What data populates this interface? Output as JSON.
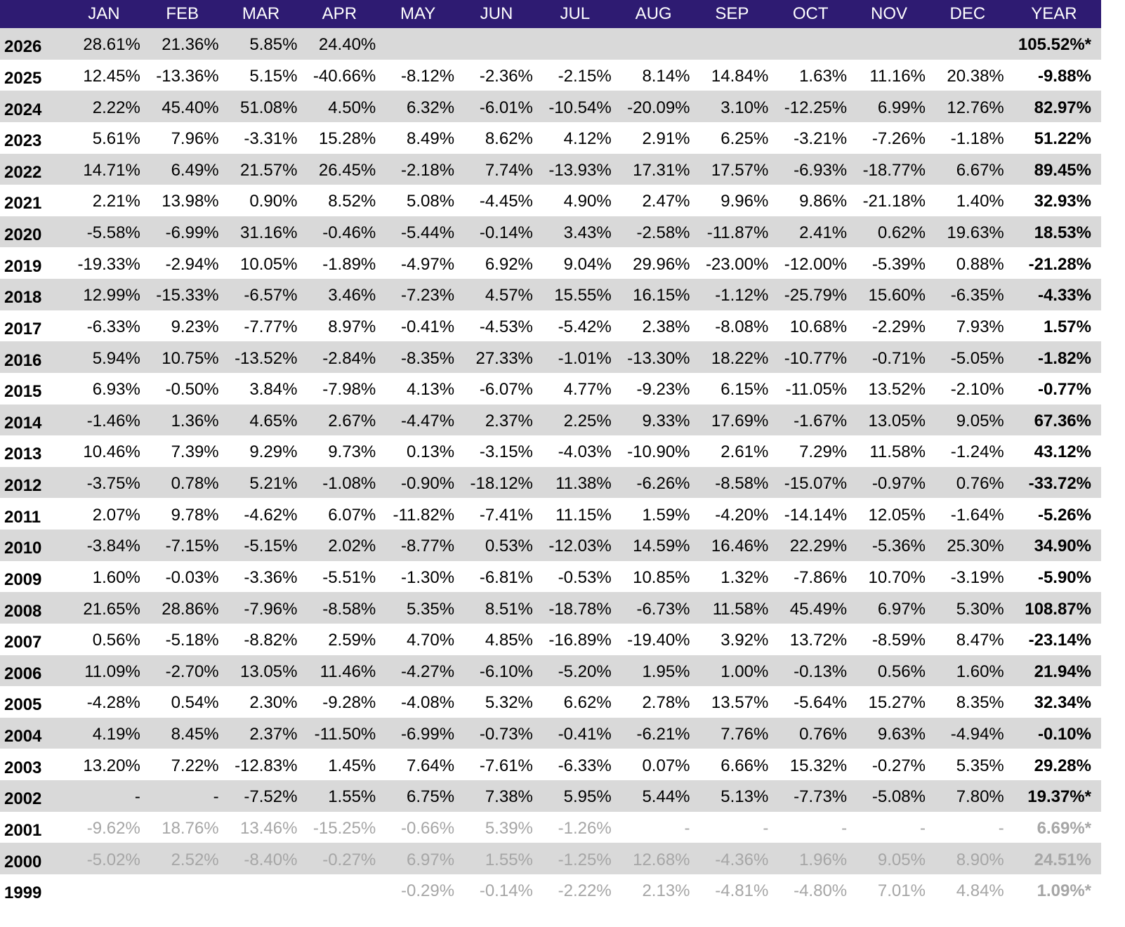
{
  "table": {
    "header": [
      "JAN",
      "FEB",
      "MAR",
      "APR",
      "MAY",
      "JUN",
      "JUL",
      "AUG",
      "SEP",
      "OCT",
      "NOV",
      "DEC",
      "YEAR"
    ],
    "rows": [
      {
        "year": "2026",
        "months": [
          "28.61%",
          "21.36%",
          "5.85%",
          "24.40%",
          null,
          null,
          null,
          null,
          null,
          null,
          null,
          null
        ],
        "total": "105.52%*"
      },
      {
        "year": "2025",
        "months": [
          "12.45%",
          "-13.36%",
          "5.15%",
          "-40.66%",
          "-8.12%",
          "-2.36%",
          "-2.15%",
          "8.14%",
          "14.84%",
          "1.63%",
          "11.16%",
          "20.38%"
        ],
        "total": "-9.88%"
      },
      {
        "year": "2024",
        "months": [
          "2.22%",
          "45.40%",
          "51.08%",
          "4.50%",
          "6.32%",
          "-6.01%",
          "-10.54%",
          "-20.09%",
          "3.10%",
          "-12.25%",
          "6.99%",
          "12.76%"
        ],
        "total": "82.97%"
      },
      {
        "year": "2023",
        "months": [
          "5.61%",
          "7.96%",
          "-3.31%",
          "15.28%",
          "8.49%",
          "8.62%",
          "4.12%",
          "2.91%",
          "6.25%",
          "-3.21%",
          "-7.26%",
          "-1.18%"
        ],
        "total": "51.22%"
      },
      {
        "year": "2022",
        "months": [
          "14.71%",
          "6.49%",
          "21.57%",
          "26.45%",
          "-2.18%",
          "7.74%",
          "-13.93%",
          "17.31%",
          "17.57%",
          "-6.93%",
          "-18.77%",
          "6.67%"
        ],
        "total": "89.45%"
      },
      {
        "year": "2021",
        "months": [
          "2.21%",
          "13.98%",
          "0.90%",
          "8.52%",
          "5.08%",
          "-4.45%",
          "4.90%",
          "2.47%",
          "9.96%",
          "9.86%",
          "-21.18%",
          "1.40%"
        ],
        "total": "32.93%"
      },
      {
        "year": "2020",
        "months": [
          "-5.58%",
          "-6.99%",
          "31.16%",
          "-0.46%",
          "-5.44%",
          "-0.14%",
          "3.43%",
          "-2.58%",
          "-11.87%",
          "2.41%",
          "0.62%",
          "19.63%"
        ],
        "total": "18.53%"
      },
      {
        "year": "2019",
        "months": [
          "-19.33%",
          "-2.94%",
          "10.05%",
          "-1.89%",
          "-4.97%",
          "6.92%",
          "9.04%",
          "29.96%",
          "-23.00%",
          "-12.00%",
          "-5.39%",
          "0.88%"
        ],
        "total": "-21.28%"
      },
      {
        "year": "2018",
        "months": [
          "12.99%",
          "-15.33%",
          "-6.57%",
          "3.46%",
          "-7.23%",
          "4.57%",
          "15.55%",
          "16.15%",
          "-1.12%",
          "-25.79%",
          "15.60%",
          "-6.35%"
        ],
        "total": "-4.33%"
      },
      {
        "year": "2017",
        "months": [
          "-6.33%",
          "9.23%",
          "-7.77%",
          "8.97%",
          "-0.41%",
          "-4.53%",
          "-5.42%",
          "2.38%",
          "-8.08%",
          "10.68%",
          "-2.29%",
          "7.93%"
        ],
        "total": "1.57%"
      },
      {
        "year": "2016",
        "months": [
          "5.94%",
          "10.75%",
          "-13.52%",
          "-2.84%",
          "-8.35%",
          "27.33%",
          "-1.01%",
          "-13.30%",
          "18.22%",
          "-10.77%",
          "-0.71%",
          "-5.05%"
        ],
        "total": "-1.82%"
      },
      {
        "year": "2015",
        "months": [
          "6.93%",
          "-0.50%",
          "3.84%",
          "-7.98%",
          "4.13%",
          "-6.07%",
          "4.77%",
          "-9.23%",
          "6.15%",
          "-11.05%",
          "13.52%",
          "-2.10%"
        ],
        "total": "-0.77%"
      },
      {
        "year": "2014",
        "months": [
          "-1.46%",
          "1.36%",
          "4.65%",
          "2.67%",
          "-4.47%",
          "2.37%",
          "2.25%",
          "9.33%",
          "17.69%",
          "-1.67%",
          "13.05%",
          "9.05%"
        ],
        "total": "67.36%"
      },
      {
        "year": "2013",
        "months": [
          "10.46%",
          "7.39%",
          "9.29%",
          "9.73%",
          "0.13%",
          "-3.15%",
          "-4.03%",
          "-10.90%",
          "2.61%",
          "7.29%",
          "11.58%",
          "-1.24%"
        ],
        "total": "43.12%"
      },
      {
        "year": "2012",
        "months": [
          "-3.75%",
          "0.78%",
          "5.21%",
          "-1.08%",
          "-0.90%",
          "-18.12%",
          "11.38%",
          "-6.26%",
          "-8.58%",
          "-15.07%",
          "-0.97%",
          "0.76%"
        ],
        "total": "-33.72%"
      },
      {
        "year": "2011",
        "months": [
          "2.07%",
          "9.78%",
          "-4.62%",
          "6.07%",
          "-11.82%",
          "-7.41%",
          "11.15%",
          "1.59%",
          "-4.20%",
          "-14.14%",
          "12.05%",
          "-1.64%"
        ],
        "total": "-5.26%"
      },
      {
        "year": "2010",
        "months": [
          "-3.84%",
          "-7.15%",
          "-5.15%",
          "2.02%",
          "-8.77%",
          "0.53%",
          "-12.03%",
          "14.59%",
          "16.46%",
          "22.29%",
          "-5.36%",
          "25.30%"
        ],
        "total": "34.90%"
      },
      {
        "year": "2009",
        "months": [
          "1.60%",
          "-0.03%",
          "-3.36%",
          "-5.51%",
          "-1.30%",
          "-6.81%",
          "-0.53%",
          "10.85%",
          "1.32%",
          "-7.86%",
          "10.70%",
          "-3.19%"
        ],
        "total": "-5.90%"
      },
      {
        "year": "2008",
        "months": [
          "21.65%",
          "28.86%",
          "-7.96%",
          "-8.58%",
          "5.35%",
          "8.51%",
          "-18.78%",
          "-6.73%",
          "11.58%",
          "45.49%",
          "6.97%",
          "5.30%"
        ],
        "total": "108.87%"
      },
      {
        "year": "2007",
        "months": [
          "0.56%",
          "-5.18%",
          "-8.82%",
          "2.59%",
          "4.70%",
          "4.85%",
          "-16.89%",
          "-19.40%",
          "3.92%",
          "13.72%",
          "-8.59%",
          "8.47%"
        ],
        "total": "-23.14%"
      },
      {
        "year": "2006",
        "months": [
          "11.09%",
          "-2.70%",
          "13.05%",
          "11.46%",
          "-4.27%",
          "-6.10%",
          "-5.20%",
          "1.95%",
          "1.00%",
          "-0.13%",
          "0.56%",
          "1.60%"
        ],
        "total": "21.94%"
      },
      {
        "year": "2005",
        "months": [
          "-4.28%",
          "0.54%",
          "2.30%",
          "-9.28%",
          "-4.08%",
          "5.32%",
          "6.62%",
          "2.78%",
          "13.57%",
          "-5.64%",
          "15.27%",
          "8.35%"
        ],
        "total": "32.34%"
      },
      {
        "year": "2004",
        "months": [
          "4.19%",
          "8.45%",
          "2.37%",
          "-11.50%",
          "-6.99%",
          "-0.73%",
          "-0.41%",
          "-6.21%",
          "7.76%",
          "0.76%",
          "9.63%",
          "-4.94%"
        ],
        "total": "-0.10%"
      },
      {
        "year": "2003",
        "months": [
          "13.20%",
          "7.22%",
          "-12.83%",
          "1.45%",
          "7.64%",
          "-7.61%",
          "-6.33%",
          "0.07%",
          "6.66%",
          "15.32%",
          "-0.27%",
          "5.35%"
        ],
        "total": "29.28%"
      },
      {
        "year": "2002",
        "months": [
          "-",
          "-",
          "-7.52%",
          "1.55%",
          "6.75%",
          "7.38%",
          "5.95%",
          "5.44%",
          "5.13%",
          "-7.73%",
          "-5.08%",
          "7.80%"
        ],
        "total": "19.37%*"
      },
      {
        "year": "2001",
        "months": [
          "-9.62%",
          "18.76%",
          "13.46%",
          "-15.25%",
          "-0.66%",
          "5.39%",
          "-1.26%",
          "-",
          "-",
          "-",
          "-",
          "-"
        ],
        "total": "6.69%*",
        "muted": true
      },
      {
        "year": "2000",
        "months": [
          "-5.02%",
          "2.52%",
          "-8.40%",
          "-0.27%",
          "6.97%",
          "1.55%",
          "-1.25%",
          "12.68%",
          "-4.36%",
          "1.96%",
          "9.05%",
          "8.90%"
        ],
        "total": "24.51%",
        "muted": true
      },
      {
        "year": "1999",
        "months": [
          null,
          null,
          null,
          null,
          "-0.29%",
          "-0.14%",
          "-2.22%",
          "2.13%",
          "-4.81%",
          "-4.80%",
          "7.01%",
          "4.84%"
        ],
        "total": "1.09%*",
        "muted": true
      }
    ]
  }
}
